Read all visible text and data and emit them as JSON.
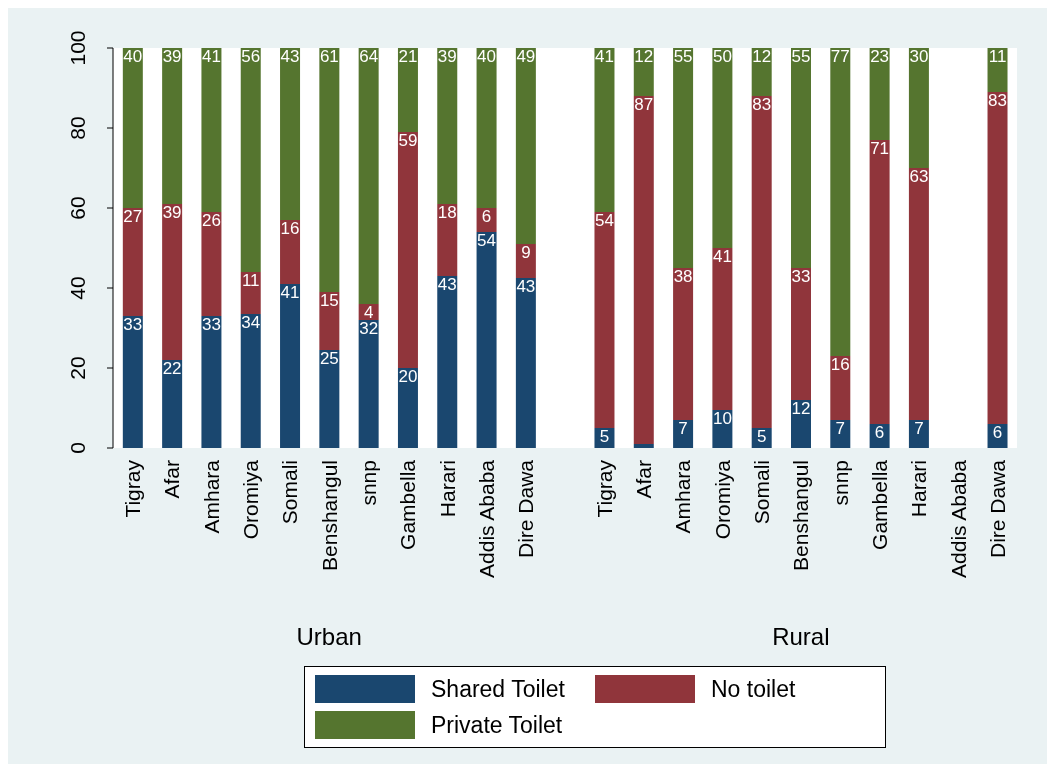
{
  "chart_data": {
    "type": "bar",
    "stacked": true,
    "categories": [
      "Tigray",
      "Afar",
      "Amhara",
      "Oromiya",
      "Somali",
      "Benshangul",
      "snnp",
      "Gambella",
      "Harari",
      "Addis Ababa",
      "Dire Dawa",
      null,
      "Tigray",
      "Afar",
      "Amhara",
      "Oromiya",
      "Somali",
      "Benshangul",
      "snnp",
      "Gambella",
      "Harari",
      "Addis Ababa",
      "Dire Dawa"
    ],
    "series": [
      {
        "name": "Shared Toilet",
        "color": "#1a476f",
        "values": [
          33,
          22,
          33,
          33.5,
          41,
          24.5,
          32,
          20,
          43,
          54,
          42.5,
          null,
          5,
          1,
          7,
          9.5,
          5,
          12,
          7,
          6,
          7,
          null,
          6
        ],
        "value_labels": [
          "33",
          "22",
          "33",
          "34",
          "41",
          "25",
          "32",
          "20",
          "43",
          "54",
          "43",
          null,
          "5",
          null,
          "7",
          "10",
          "5",
          "12",
          "7",
          "6",
          "7",
          null,
          "6"
        ]
      },
      {
        "name": "No toilet",
        "color": "#90353b",
        "values": [
          27,
          39,
          26,
          10.5,
          16,
          14.5,
          4,
          59,
          18,
          6,
          8.5,
          null,
          54,
          87,
          38,
          40.5,
          83,
          33,
          16,
          71,
          63,
          null,
          83
        ],
        "value_labels": [
          "27",
          "39",
          "26",
          "11",
          "16",
          "15",
          "4",
          "59",
          "18",
          "6",
          "9",
          null,
          "54",
          "87",
          "38",
          "41",
          "83",
          "33",
          "16",
          "71",
          "63",
          null,
          "83"
        ]
      },
      {
        "name": "Private Toilet",
        "color": "#55752f",
        "values": [
          40,
          39,
          41,
          56,
          43,
          61,
          64,
          21,
          39,
          40,
          49,
          null,
          41,
          12,
          55,
          50,
          12,
          55,
          77,
          23,
          30,
          null,
          11
        ],
        "value_labels": [
          "40",
          "39",
          "41",
          "56",
          "43",
          "61",
          "64",
          "21",
          "39",
          "40",
          "49",
          null,
          "41",
          "12",
          "55",
          "50",
          "12",
          "55",
          "77",
          "23",
          "30",
          null,
          "11"
        ]
      }
    ],
    "ylim": [
      0,
      100
    ],
    "yticks": [
      0,
      20,
      40,
      60,
      80,
      100
    ],
    "legend": "bottom",
    "annotations": [
      "Urban",
      "Rural"
    ]
  }
}
